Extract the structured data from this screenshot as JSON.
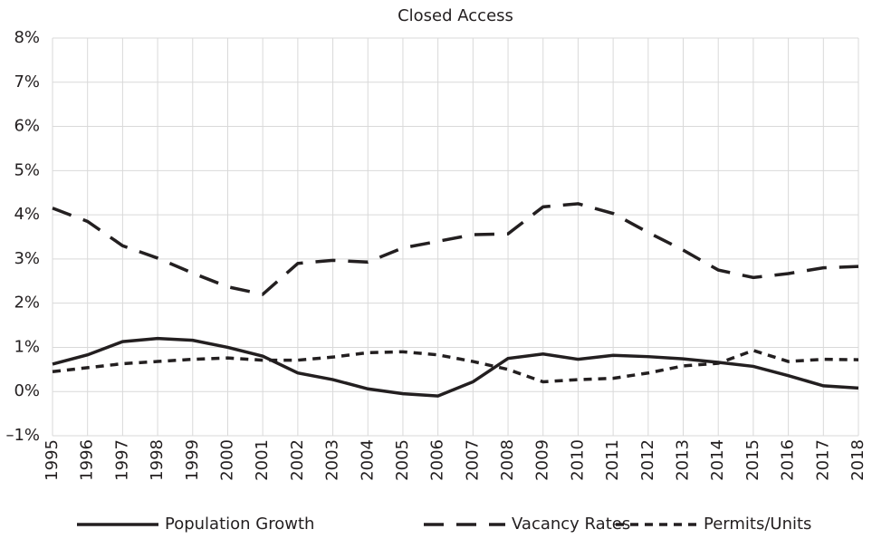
{
  "chart_data": {
    "type": "line",
    "title": "Closed Access",
    "categories": [
      "1995",
      "1996",
      "1997",
      "1998",
      "1999",
      "2000",
      "2001",
      "2002",
      "2003",
      "2004",
      "2005",
      "2006",
      "2007",
      "2008",
      "2009",
      "2010",
      "2011",
      "2012",
      "2013",
      "2014",
      "2015",
      "2016",
      "2017",
      "2018"
    ],
    "series": [
      {
        "name": "Population Growth",
        "color": "#231f20",
        "dash": "solid",
        "values": [
          0.62,
          0.83,
          1.13,
          1.2,
          1.16,
          1.0,
          0.8,
          0.42,
          0.27,
          0.06,
          -0.05,
          -0.1,
          0.22,
          0.75,
          0.85,
          0.73,
          0.82,
          0.79,
          0.74,
          0.66,
          0.57,
          0.36,
          0.13,
          0.08
        ]
      },
      {
        "name": "Vacancy Rates",
        "color": "#231f20",
        "dash": "long",
        "values": [
          4.15,
          3.85,
          3.3,
          3.02,
          2.68,
          2.37,
          2.2,
          2.9,
          2.97,
          2.93,
          3.25,
          3.4,
          3.55,
          3.57,
          4.18,
          4.25,
          4.03,
          3.6,
          3.2,
          2.75,
          2.58,
          2.67,
          2.8,
          2.83
        ]
      },
      {
        "name": "Permits/Units",
        "color": "#231f20",
        "dash": "short",
        "values": [
          0.45,
          0.54,
          0.63,
          0.68,
          0.73,
          0.76,
          0.71,
          0.71,
          0.78,
          0.88,
          0.9,
          0.83,
          0.68,
          0.5,
          0.22,
          0.27,
          0.3,
          0.42,
          0.58,
          0.64,
          0.93,
          0.68,
          0.73,
          0.72
        ]
      }
    ],
    "ylim": [
      -1,
      8
    ],
    "yticks": [
      {
        "value": -1,
        "label": "–1%"
      },
      {
        "value": 0,
        "label": "0%"
      },
      {
        "value": 1,
        "label": "1%"
      },
      {
        "value": 2,
        "label": "2%"
      },
      {
        "value": 3,
        "label": "3%"
      },
      {
        "value": 4,
        "label": "4%"
      },
      {
        "value": 5,
        "label": "5%"
      },
      {
        "value": 6,
        "label": "6%"
      },
      {
        "value": 7,
        "label": "7%"
      },
      {
        "value": 8,
        "label": "8%"
      }
    ],
    "grid": true,
    "legend": "bottom"
  }
}
